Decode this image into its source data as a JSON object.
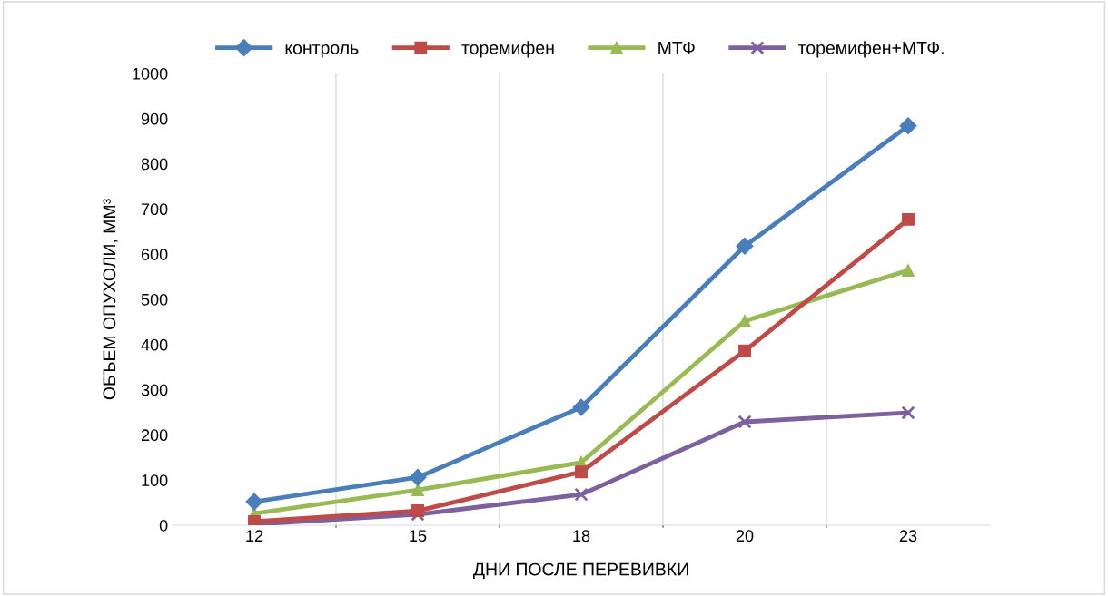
{
  "chart_data": {
    "type": "line",
    "xlabel": "ДНИ ПОСЛЕ ПЕРЕВИВКИ",
    "ylabel": "ОБЪЕМ ОПУХОЛИ, ММ³",
    "categories": [
      "12",
      "15",
      "18",
      "20",
      "23"
    ],
    "series": [
      {
        "name": "контроль",
        "color": "#4a7ebb",
        "marker": "diamond",
        "values": [
          52,
          106,
          261,
          618,
          884
        ]
      },
      {
        "name": "торемифен",
        "color": "#be4b48",
        "marker": "square",
        "values": [
          8,
          32,
          118,
          386,
          677
        ]
      },
      {
        "name": "МТФ",
        "color": "#98b954",
        "marker": "triangle",
        "values": [
          26,
          78,
          139,
          452,
          564
        ]
      },
      {
        "name": "торемифен+МТФ.",
        "color": "#7d60a0",
        "marker": "cross",
        "values": [
          2,
          24,
          68,
          229,
          249
        ]
      }
    ],
    "ylim": [
      0,
      1000
    ],
    "yticks": [
      0,
      100,
      200,
      300,
      400,
      500,
      600,
      700,
      800,
      900,
      1000
    ],
    "grid": "x",
    "legend": "top",
    "line_style": "solid"
  }
}
